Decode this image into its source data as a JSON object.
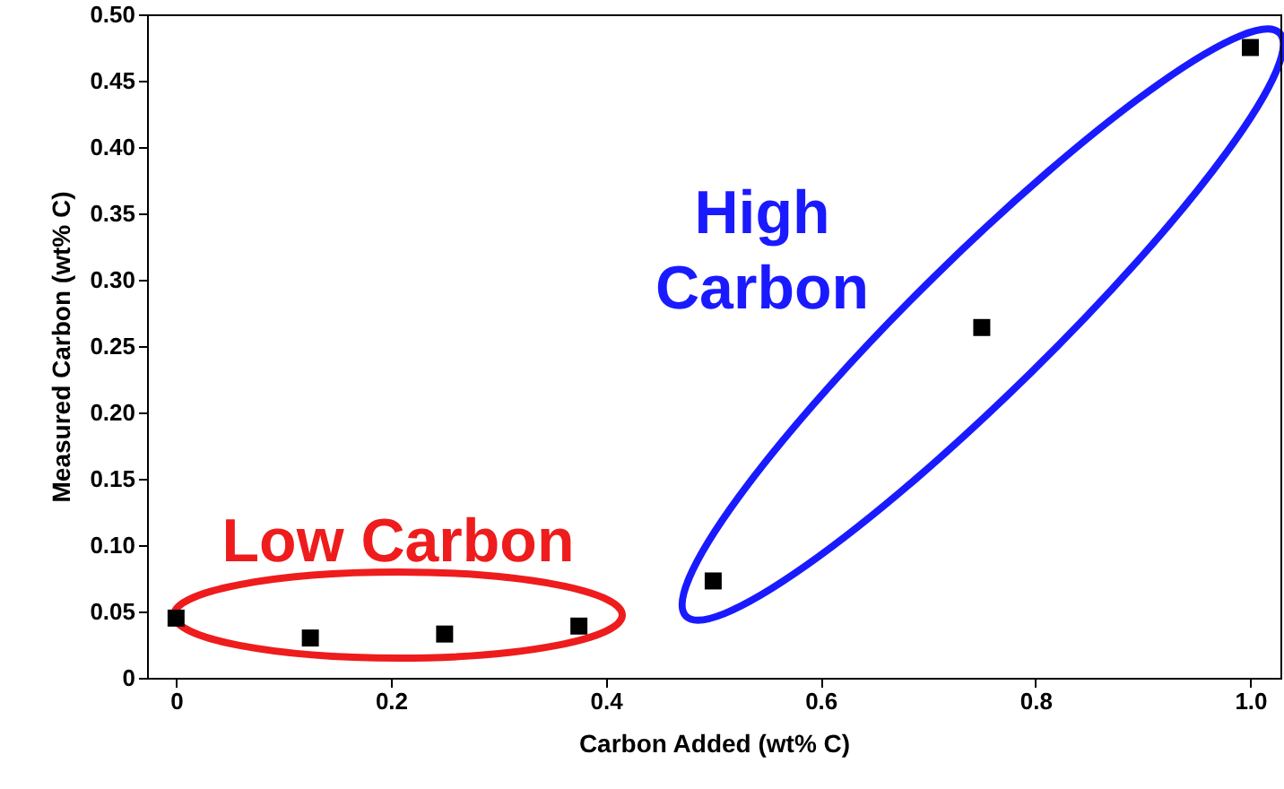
{
  "chart_data": {
    "type": "scatter",
    "xlabel": "Carbon Added (wt% C)",
    "ylabel": "Measured Carbon (wt% C)",
    "x": [
      0,
      0.125,
      0.25,
      0.375,
      0.5,
      0.75,
      1.0
    ],
    "series": [
      {
        "color": "#000000",
        "values": [
          0.045,
          0.03,
          0.033,
          0.039,
          0.073,
          0.264,
          0.475
        ]
      }
    ],
    "marker": "square",
    "grid": false,
    "xlim": [
      -0.027,
      1.028
    ],
    "xticks": [
      0,
      0.2,
      0.4,
      0.6,
      0.8,
      {
        "value": 1,
        "label": "1.0"
      }
    ],
    "ylim": [
      0,
      0.5
    ],
    "yticks": [
      0,
      0.05,
      {
        "value": 0.1,
        "label": "0.10"
      },
      0.15,
      {
        "value": 0.2,
        "label": "0.20"
      },
      0.25,
      {
        "value": 0.3,
        "label": "0.30"
      },
      0.35,
      {
        "value": 0.4,
        "label": "0.40"
      },
      0.45,
      {
        "value": 0.5,
        "label": "0.50"
      }
    ],
    "annotations": [
      "Low Carbon",
      "High\nCarbon"
    ]
  }
}
